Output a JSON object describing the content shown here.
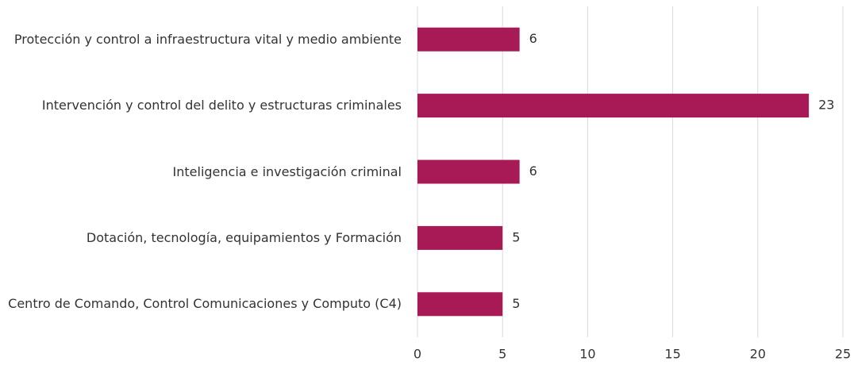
{
  "chart_data": {
    "type": "bar",
    "orientation": "horizontal",
    "categories": [
      "Protección y control a  infraestructura vital y medio ambiente",
      "Intervención y control del delito y estructuras criminales",
      "Inteligencia e investigación criminal",
      "Dotación, tecnología, equipamientos y Formación",
      "Centro de Comando, Control Comunicaciones y Computo (C4)"
    ],
    "values": [
      6,
      23,
      6,
      5,
      5
    ],
    "color": "#a81a55",
    "xlim": [
      0,
      25
    ],
    "xticks": [
      0,
      5,
      10,
      15,
      20,
      25
    ],
    "grid": true
  }
}
